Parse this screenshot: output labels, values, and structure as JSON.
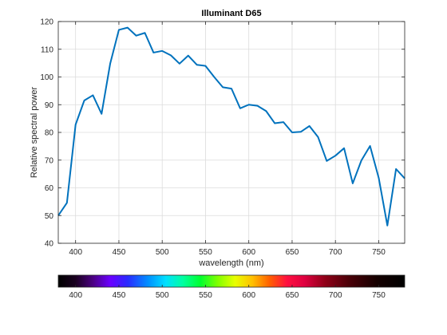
{
  "chart_data": {
    "type": "line",
    "title": "Illuminant D65",
    "xlabel": "wavelength (nm)",
    "ylabel": "Relative spectral power",
    "xlim": [
      380,
      780
    ],
    "ylim": [
      40,
      120
    ],
    "xticks": [
      400,
      450,
      500,
      550,
      600,
      650,
      700,
      750
    ],
    "yticks": [
      40,
      50,
      60,
      70,
      80,
      90,
      100,
      110,
      120
    ],
    "grid": true,
    "series": [
      {
        "color": "#0072bd",
        "x": [
          380,
          390,
          400,
          410,
          420,
          430,
          440,
          450,
          460,
          470,
          480,
          490,
          500,
          510,
          520,
          530,
          540,
          550,
          560,
          570,
          580,
          590,
          600,
          610,
          620,
          630,
          640,
          650,
          660,
          670,
          680,
          690,
          700,
          710,
          720,
          730,
          740,
          750,
          760,
          770,
          780
        ],
        "y": [
          50.0,
          54.6,
          82.8,
          91.5,
          93.4,
          86.7,
          104.9,
          117.0,
          117.8,
          114.9,
          115.9,
          108.8,
          109.4,
          107.8,
          104.8,
          107.7,
          104.4,
          104.0,
          100.0,
          96.3,
          95.8,
          88.7,
          90.0,
          89.6,
          87.7,
          83.3,
          83.7,
          80.0,
          80.2,
          82.3,
          78.3,
          69.7,
          71.6,
          74.3,
          61.6,
          69.9,
          75.1,
          63.6,
          46.4,
          66.8,
          63.4
        ]
      }
    ],
    "colorbar": {
      "ticks": [
        400,
        450,
        500,
        550,
        600,
        650,
        700,
        750
      ],
      "range": [
        380,
        780
      ]
    }
  }
}
